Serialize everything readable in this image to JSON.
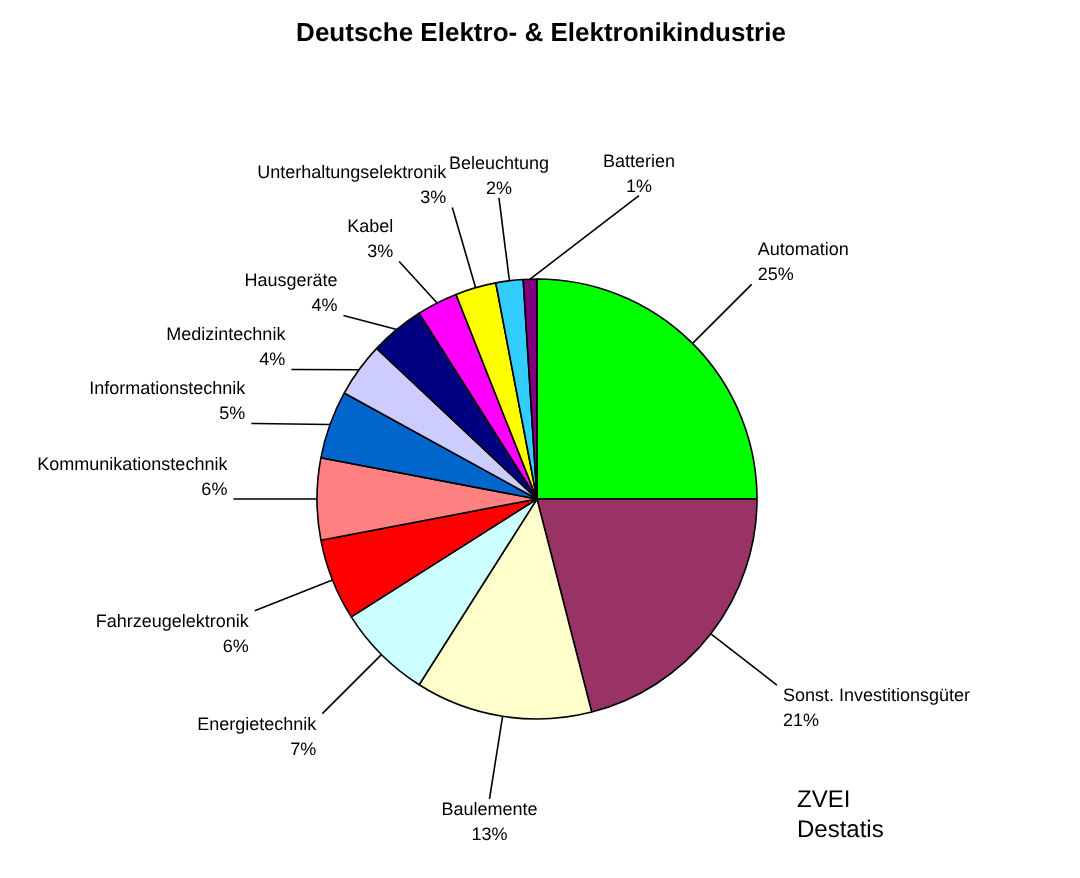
{
  "chart_data": {
    "type": "pie",
    "title": "Deutsche Elektro- & Elektronikindustrie",
    "categories": [
      "Automation",
      "Sonst. Investitionsgüter",
      "Baulemente",
      "Energietechnik",
      "Fahrzeugelektronik",
      "Kommunikationstechnik",
      "Informationstechnik",
      "Medizintechnik",
      "Hausgeräte",
      "Kabel",
      "Unterhaltungselektronik",
      "Beleuchtung",
      "Batterien"
    ],
    "values": [
      25,
      21,
      13,
      7,
      6,
      6,
      5,
      4,
      4,
      3,
      3,
      2,
      1
    ],
    "value_labels": [
      "25%",
      "21%",
      "13%",
      "7%",
      "6%",
      "6%",
      "5%",
      "4%",
      "4%",
      "3%",
      "3%",
      "2%",
      "1%"
    ],
    "colors": [
      "#00ff00",
      "#993366",
      "#ffffcc",
      "#ccffff",
      "#ff0000",
      "#ff8080",
      "#0066cc",
      "#ccccff",
      "#000080",
      "#ff00ff",
      "#ffff00",
      "#33ccff",
      "#800080"
    ],
    "annotations": [
      "ZVEI",
      "Destatis"
    ]
  }
}
